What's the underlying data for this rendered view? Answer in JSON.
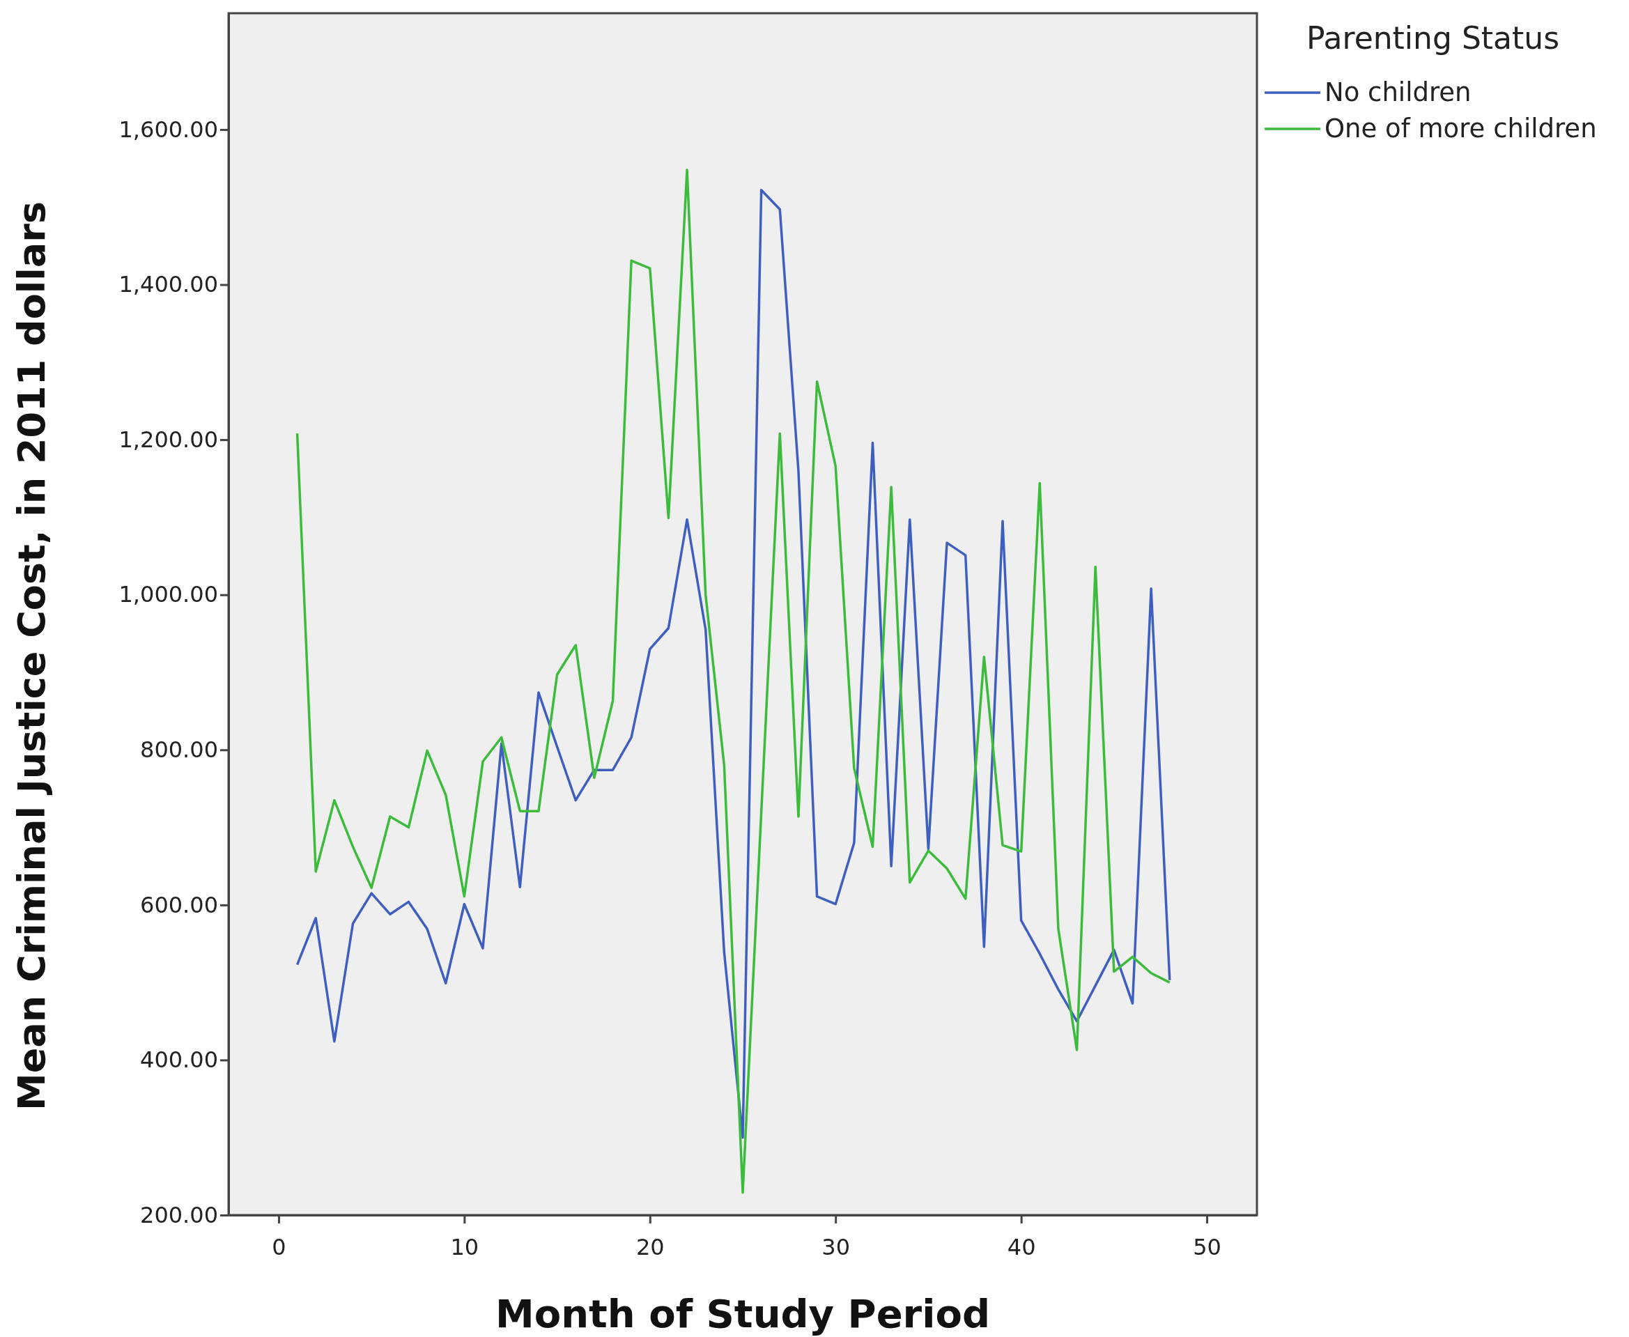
{
  "chart_data": {
    "type": "line",
    "xlabel": "Month of Study Period",
    "ylabel": "Mean Criminal Justice Cost, in 2011 dollars",
    "legend_title": "Parenting Status",
    "legend": "top right",
    "grid": false,
    "marker": "none",
    "line_style": "solid",
    "x": [
      1,
      2,
      3,
      4,
      5,
      6,
      7,
      8,
      9,
      10,
      11,
      12,
      13,
      14,
      15,
      16,
      17,
      18,
      19,
      20,
      21,
      22,
      23,
      24,
      25,
      26,
      27,
      28,
      29,
      30,
      31,
      32,
      33,
      34,
      35,
      36,
      37,
      38,
      39,
      40,
      41,
      42,
      43,
      44,
      45,
      46,
      47,
      48
    ],
    "xlim": [
      -2.7,
      52.7
    ],
    "xticks": [
      0,
      10,
      20,
      30,
      40,
      50
    ],
    "ylim": [
      200,
      1750
    ],
    "yticks": [
      {
        "value": 200,
        "label": "200.00"
      },
      {
        "value": 400,
        "label": "400.00"
      },
      {
        "value": 600,
        "label": "600.00"
      },
      {
        "value": 800,
        "label": "800.00"
      },
      {
        "value": 1000,
        "label": "1,000.00"
      },
      {
        "value": 1200,
        "label": "1,200.00"
      },
      {
        "value": 1400,
        "label": "1,400.00"
      },
      {
        "value": 1600,
        "label": "1,600.00"
      }
    ],
    "series": [
      {
        "name": "No children",
        "color": "#3f5fbf",
        "values": [
          523,
          583,
          424,
          576,
          615,
          588,
          604,
          569,
          499,
          601,
          544,
          808,
          623,
          874,
          804,
          735,
          774,
          774,
          816,
          930,
          957,
          1097,
          955,
          539,
          300,
          1522,
          1497,
          1160,
          611,
          601,
          680,
          1196,
          650,
          1097,
          672,
          1067,
          1051,
          546,
          1095,
          580,
          537,
          491,
          450,
          496,
          542,
          473,
          1008,
          503
        ]
      },
      {
        "name": "One of more children",
        "color": "#3dbb3d",
        "values": [
          1208,
          643,
          735,
          675,
          622,
          714,
          700,
          799,
          742,
          611,
          785,
          816,
          721,
          721,
          897,
          935,
          764,
          863,
          1431,
          1421,
          1099,
          1548,
          1000,
          780,
          229,
          720,
          1208,
          714,
          1275,
          1166,
          776,
          675,
          1139,
          629,
          670,
          647,
          608,
          920,
          677,
          669,
          1144,
          569,
          413,
          1036,
          514,
          533,
          512,
          500
        ]
      }
    ]
  }
}
